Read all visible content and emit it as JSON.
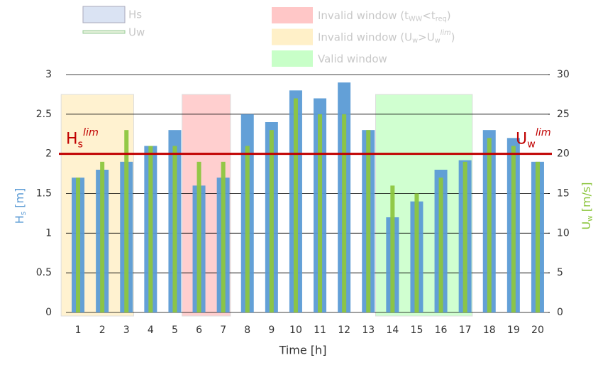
{
  "chart_data": {
    "type": "bar",
    "categories": [
      1,
      2,
      3,
      4,
      5,
      6,
      7,
      8,
      9,
      10,
      11,
      12,
      13,
      14,
      15,
      16,
      17,
      18,
      19,
      20
    ],
    "series": [
      {
        "name": "Hs",
        "color": "#5b9bd5",
        "legend_color": "#dae3f3",
        "values": [
          1.7,
          1.8,
          1.9,
          2.1,
          2.3,
          1.6,
          1.7,
          2.5,
          2.4,
          2.8,
          2.7,
          2.9,
          2.3,
          1.2,
          1.4,
          1.8,
          1.92,
          2.3,
          2.2,
          1.9
        ]
      },
      {
        "name": "Uw",
        "color": "#8dc63f",
        "legend_color": "#e2f0d9",
        "axis": "y2",
        "values": [
          17,
          19,
          23,
          21,
          21,
          19,
          19,
          21,
          23,
          27,
          25,
          25,
          23,
          16,
          15,
          17,
          19,
          22,
          21,
          19
        ]
      }
    ],
    "windows": [
      {
        "name_parts": [
          [
            "Invalid window (t",
            ""
          ],
          [
            "WW",
            "sub"
          ],
          [
            "<t",
            ""
          ],
          [
            "req",
            "sub"
          ],
          [
            ")",
            ""
          ]
        ],
        "color": "#ffc7c7",
        "from": 6,
        "to": 7,
        "legend_order": 0
      },
      {
        "name_parts": [
          [
            "Invalid window (U",
            ""
          ],
          [
            "w",
            "sub"
          ],
          [
            ">U",
            ""
          ],
          [
            "w",
            "sub"
          ],
          [
            "lim",
            "sup"
          ],
          [
            ")",
            ""
          ]
        ],
        "color": "#fff0c8",
        "from": 1,
        "to": 3,
        "legend_order": 1
      },
      {
        "name_parts": [
          [
            "Valid window",
            ""
          ]
        ],
        "color": "#c8ffc8",
        "from": 14,
        "to": 17,
        "legend_order": 2
      }
    ],
    "thresholds": {
      "value": 2,
      "y2value": 20,
      "color": "#c00000",
      "left_label": [
        [
          "H",
          ""
        ],
        [
          "s",
          "sub"
        ],
        [
          "lim",
          "sup"
        ]
      ],
      "right_label": [
        [
          "U",
          ""
        ],
        [
          "w",
          "sub"
        ],
        [
          "lim",
          "sup"
        ]
      ]
    },
    "xlabel": "Time [h]",
    "ylabel": [
      [
        "H",
        ""
      ],
      [
        "s",
        "sub"
      ],
      [
        " [m]",
        ""
      ]
    ],
    "y2label": [
      [
        "U",
        ""
      ],
      [
        "w",
        "sub"
      ],
      [
        " [m/s]",
        ""
      ]
    ],
    "ylim": [
      0,
      3
    ],
    "yticks": [
      0,
      0.5,
      1,
      1.5,
      2,
      2.5,
      3
    ],
    "y2lim": [
      0,
      30
    ],
    "y2ticks": [
      0,
      5,
      10,
      15,
      20,
      25,
      30
    ],
    "grid": true
  }
}
